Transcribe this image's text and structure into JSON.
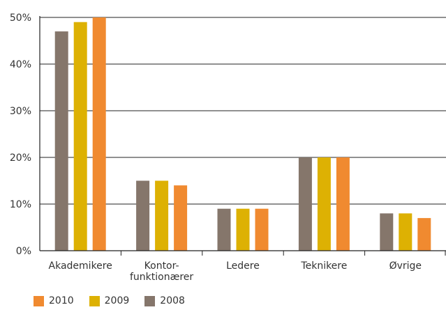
{
  "chart_data": {
    "type": "bar",
    "categories": [
      "Akademikere",
      "Kontor-\nfunktionærer",
      "Ledere",
      "Teknikere",
      "Øvrige"
    ],
    "series": [
      {
        "name": "2008",
        "color": "#85766B",
        "values": [
          47,
          15,
          9,
          20,
          8
        ]
      },
      {
        "name": "2009",
        "color": "#DDB103",
        "values": [
          49,
          15,
          9,
          20,
          8
        ]
      },
      {
        "name": "2010",
        "color": "#F08A30",
        "values": [
          50,
          14,
          9,
          20,
          7
        ]
      }
    ],
    "yticks": [
      "0%",
      "10%",
      "20%",
      "30%",
      "40%",
      "50%"
    ],
    "ylim": [
      0,
      50
    ],
    "grid": true,
    "legend_position": "bottom-left"
  },
  "legend": [
    {
      "label": "2010",
      "color": "#F08A30"
    },
    {
      "label": "2009",
      "color": "#DDB103"
    },
    {
      "label": "2008",
      "color": "#85766B"
    }
  ]
}
